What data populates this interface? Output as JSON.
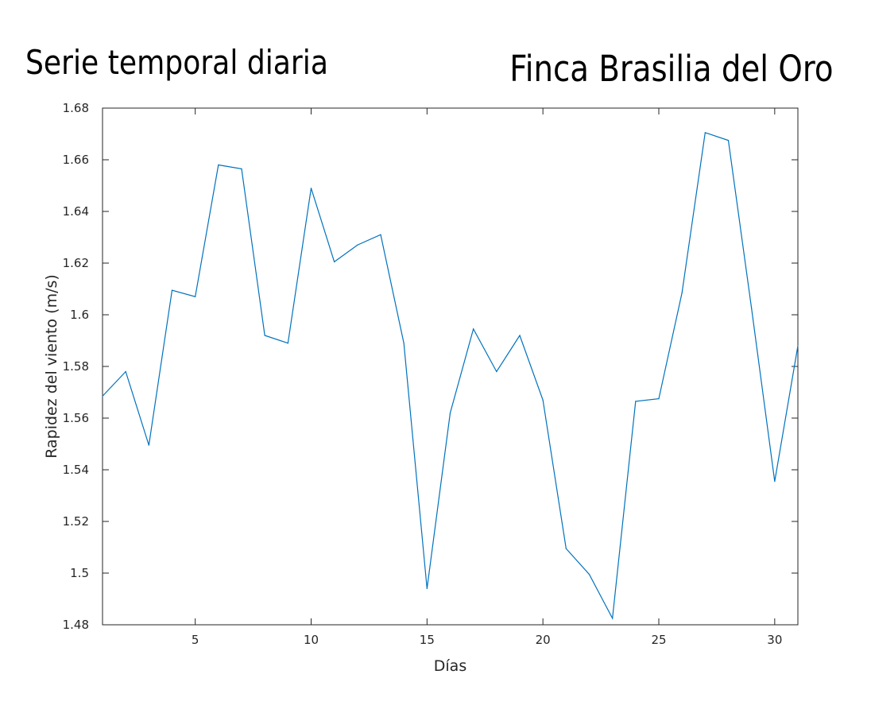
{
  "header": {
    "left_title": "Serie temporal diaria",
    "right_title": "Finca Brasilia del Oro"
  },
  "chart_data": {
    "type": "line",
    "xlabel": "Días",
    "ylabel": "Rapidez del viento (m/s)",
    "xlim": [
      1,
      31
    ],
    "ylim": [
      1.48,
      1.68
    ],
    "xticks": [
      5,
      10,
      15,
      20,
      25,
      30
    ],
    "yticks": [
      1.48,
      1.5,
      1.52,
      1.54,
      1.56,
      1.58,
      1.6,
      1.62,
      1.64,
      1.66,
      1.68
    ],
    "ytick_labels": [
      "1.48",
      "1.5",
      "1.52",
      "1.54",
      "1.56",
      "1.58",
      "1.6",
      "1.62",
      "1.64",
      "1.66",
      "1.68"
    ],
    "grid": false,
    "line_color": "#0072BD",
    "series": [
      {
        "x": [
          1,
          2,
          3,
          4,
          5,
          6,
          7,
          8,
          9,
          10,
          11,
          12,
          13,
          14,
          15,
          16,
          17,
          18,
          19,
          20,
          21,
          22,
          23,
          24,
          25,
          26,
          27,
          28,
          29,
          30,
          31
        ],
        "values": [
          1.5685,
          1.578,
          1.5495,
          1.6095,
          1.607,
          1.658,
          1.6565,
          1.592,
          1.589,
          1.649,
          1.6205,
          1.627,
          1.631,
          1.589,
          1.494,
          1.562,
          1.5945,
          1.578,
          1.592,
          1.567,
          1.5095,
          1.4995,
          1.4825,
          1.5665,
          1.5675,
          1.6085,
          1.6705,
          1.6675,
          1.6025,
          1.5355,
          1.588
        ]
      }
    ]
  }
}
